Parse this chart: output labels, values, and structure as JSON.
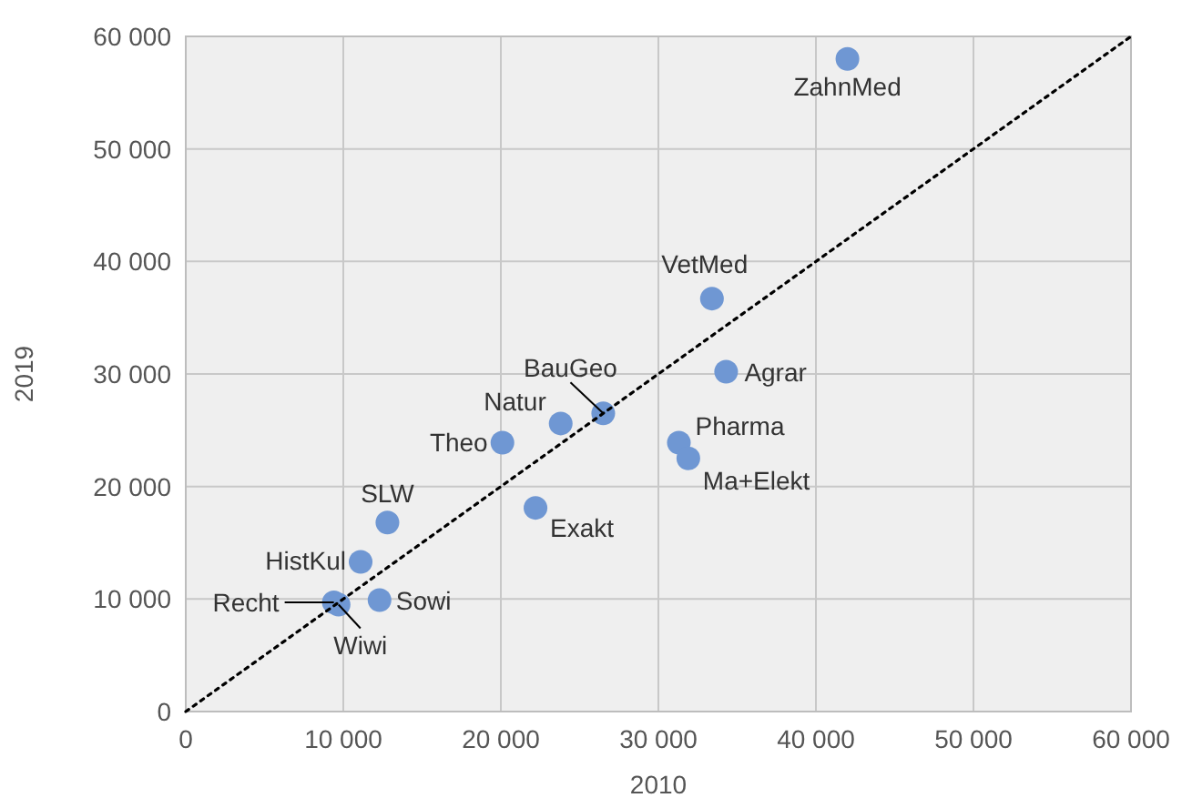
{
  "chart_data": {
    "type": "scatter",
    "xlabel": "2010",
    "ylabel": "2019",
    "xlim": [
      0,
      60000
    ],
    "ylim": [
      0,
      60000
    ],
    "xticks": [
      0,
      {
        "value": 10000,
        "label": "10 000"
      },
      {
        "value": 20000,
        "label": "20 000"
      },
      {
        "value": 30000,
        "label": "30 000"
      },
      {
        "value": 40000,
        "label": "40 000"
      },
      {
        "value": 50000,
        "label": "50 000"
      },
      {
        "value": 60000,
        "label": "60 000"
      }
    ],
    "yticks": [
      0,
      {
        "value": 10000,
        "label": "10 000"
      },
      {
        "value": 20000,
        "label": "20 000"
      },
      {
        "value": 30000,
        "label": "30 000"
      },
      {
        "value": 40000,
        "label": "40 000"
      },
      {
        "value": 50000,
        "label": "50 000"
      },
      {
        "value": 60000,
        "label": "60 000"
      }
    ],
    "grid": true,
    "series": [
      {
        "color": "#6f97d3",
        "marker": "circle",
        "x": [
          42000,
          33400,
          34300,
          26500,
          23800,
          20100,
          31300,
          31900,
          22200,
          12800,
          11100,
          12300,
          9400,
          9700
        ],
        "values": [
          58000,
          36700,
          30200,
          26500,
          25600,
          23900,
          23900,
          22500,
          18100,
          16800,
          13300,
          9900,
          9700,
          9500
        ]
      },
      {
        "type": "line",
        "color": "#000000",
        "line_style": "dotted",
        "x": [
          0,
          60000
        ],
        "values": [
          0,
          60000
        ]
      }
    ],
    "annotations": [
      {
        "text": "ZahnMed",
        "x": 42000,
        "y": 58000
      },
      {
        "text": "VetMed",
        "x": 33400,
        "y": 36700
      },
      {
        "text": "Agrar",
        "x": 34300,
        "y": 30200
      },
      {
        "text": "BauGeo",
        "x": 26500,
        "y": 26500
      },
      {
        "text": "Natur",
        "x": 23800,
        "y": 25600
      },
      {
        "text": "Theo",
        "x": 20100,
        "y": 23900
      },
      {
        "text": "Pharma",
        "x": 31300,
        "y": 23900
      },
      {
        "text": "Ma+Elekt",
        "x": 31900,
        "y": 22500
      },
      {
        "text": "Exakt",
        "x": 22200,
        "y": 18100
      },
      {
        "text": "SLW",
        "x": 12800,
        "y": 16800
      },
      {
        "text": "HistKul",
        "x": 11100,
        "y": 13300
      },
      {
        "text": "Sowi",
        "x": 12300,
        "y": 9900
      },
      {
        "text": "Recht",
        "x": 9400,
        "y": 9700
      },
      {
        "text": "Wiwi",
        "x": 9700,
        "y": 9500
      }
    ]
  }
}
